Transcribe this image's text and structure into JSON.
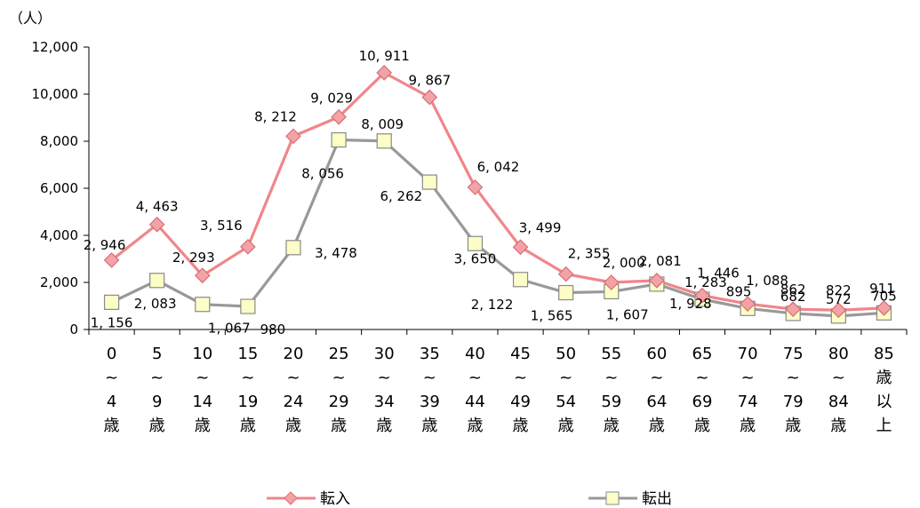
{
  "chart_data": {
    "type": "line",
    "unit_label": "（人）",
    "ylim": [
      0,
      12000
    ],
    "yticks": [
      "0",
      "2,000",
      "4,000",
      "6,000",
      "8,000",
      "10,000",
      "12,000"
    ],
    "categories": [
      [
        "0",
        "~",
        "4",
        "歳"
      ],
      [
        "5",
        "~",
        "9",
        "歳"
      ],
      [
        "10",
        "~",
        "14",
        "歳"
      ],
      [
        "15",
        "~",
        "19",
        "歳"
      ],
      [
        "20",
        "~",
        "24",
        "歳"
      ],
      [
        "25",
        "~",
        "29",
        "歳"
      ],
      [
        "30",
        "~",
        "34",
        "歳"
      ],
      [
        "35",
        "~",
        "39",
        "歳"
      ],
      [
        "40",
        "~",
        "44",
        "歳"
      ],
      [
        "45",
        "~",
        "49",
        "歳"
      ],
      [
        "50",
        "~",
        "54",
        "歳"
      ],
      [
        "55",
        "~",
        "59",
        "歳"
      ],
      [
        "60",
        "~",
        "64",
        "歳"
      ],
      [
        "65",
        "~",
        "69",
        "歳"
      ],
      [
        "70",
        "~",
        "74",
        "歳"
      ],
      [
        "75",
        "~",
        "79",
        "歳"
      ],
      [
        "80",
        "~",
        "84",
        "歳"
      ],
      [
        "85",
        "歳",
        "以",
        "上"
      ]
    ],
    "series": [
      {
        "name": "転入",
        "color": "#f0868a",
        "marker": "diamond",
        "values": [
          2946,
          4463,
          2293,
          3516,
          8212,
          9029,
          10911,
          9867,
          6042,
          3499,
          2355,
          2000,
          2081,
          1446,
          1088,
          862,
          822,
          911
        ],
        "labels": [
          "2, 946",
          "4, 463",
          "2, 293",
          "3, 516",
          "8, 212",
          "9, 029",
          "10, 911",
          "9, 867",
          "6, 042",
          "3, 499",
          "2, 355",
          "2, 000",
          "2, 081",
          "1, 446",
          "1, 088",
          "862",
          "822",
          "911"
        ]
      },
      {
        "name": "転出",
        "color": "#999999",
        "marker": "square",
        "values": [
          1156,
          2083,
          1067,
          980,
          3478,
          8056,
          8009,
          6262,
          3650,
          2122,
          1565,
          1607,
          1928,
          1283,
          895,
          682,
          572,
          705
        ],
        "labels": [
          "1, 156",
          "2, 083",
          "1, 067",
          "980",
          "3, 478",
          "8, 056",
          "8, 009",
          "6, 262",
          "3, 650",
          "2, 122",
          "1, 565",
          "1, 607",
          "1, 928",
          "1, 283",
          "895",
          "682",
          "572",
          "705"
        ]
      }
    ],
    "legend_position": "bottom",
    "grid": false
  }
}
